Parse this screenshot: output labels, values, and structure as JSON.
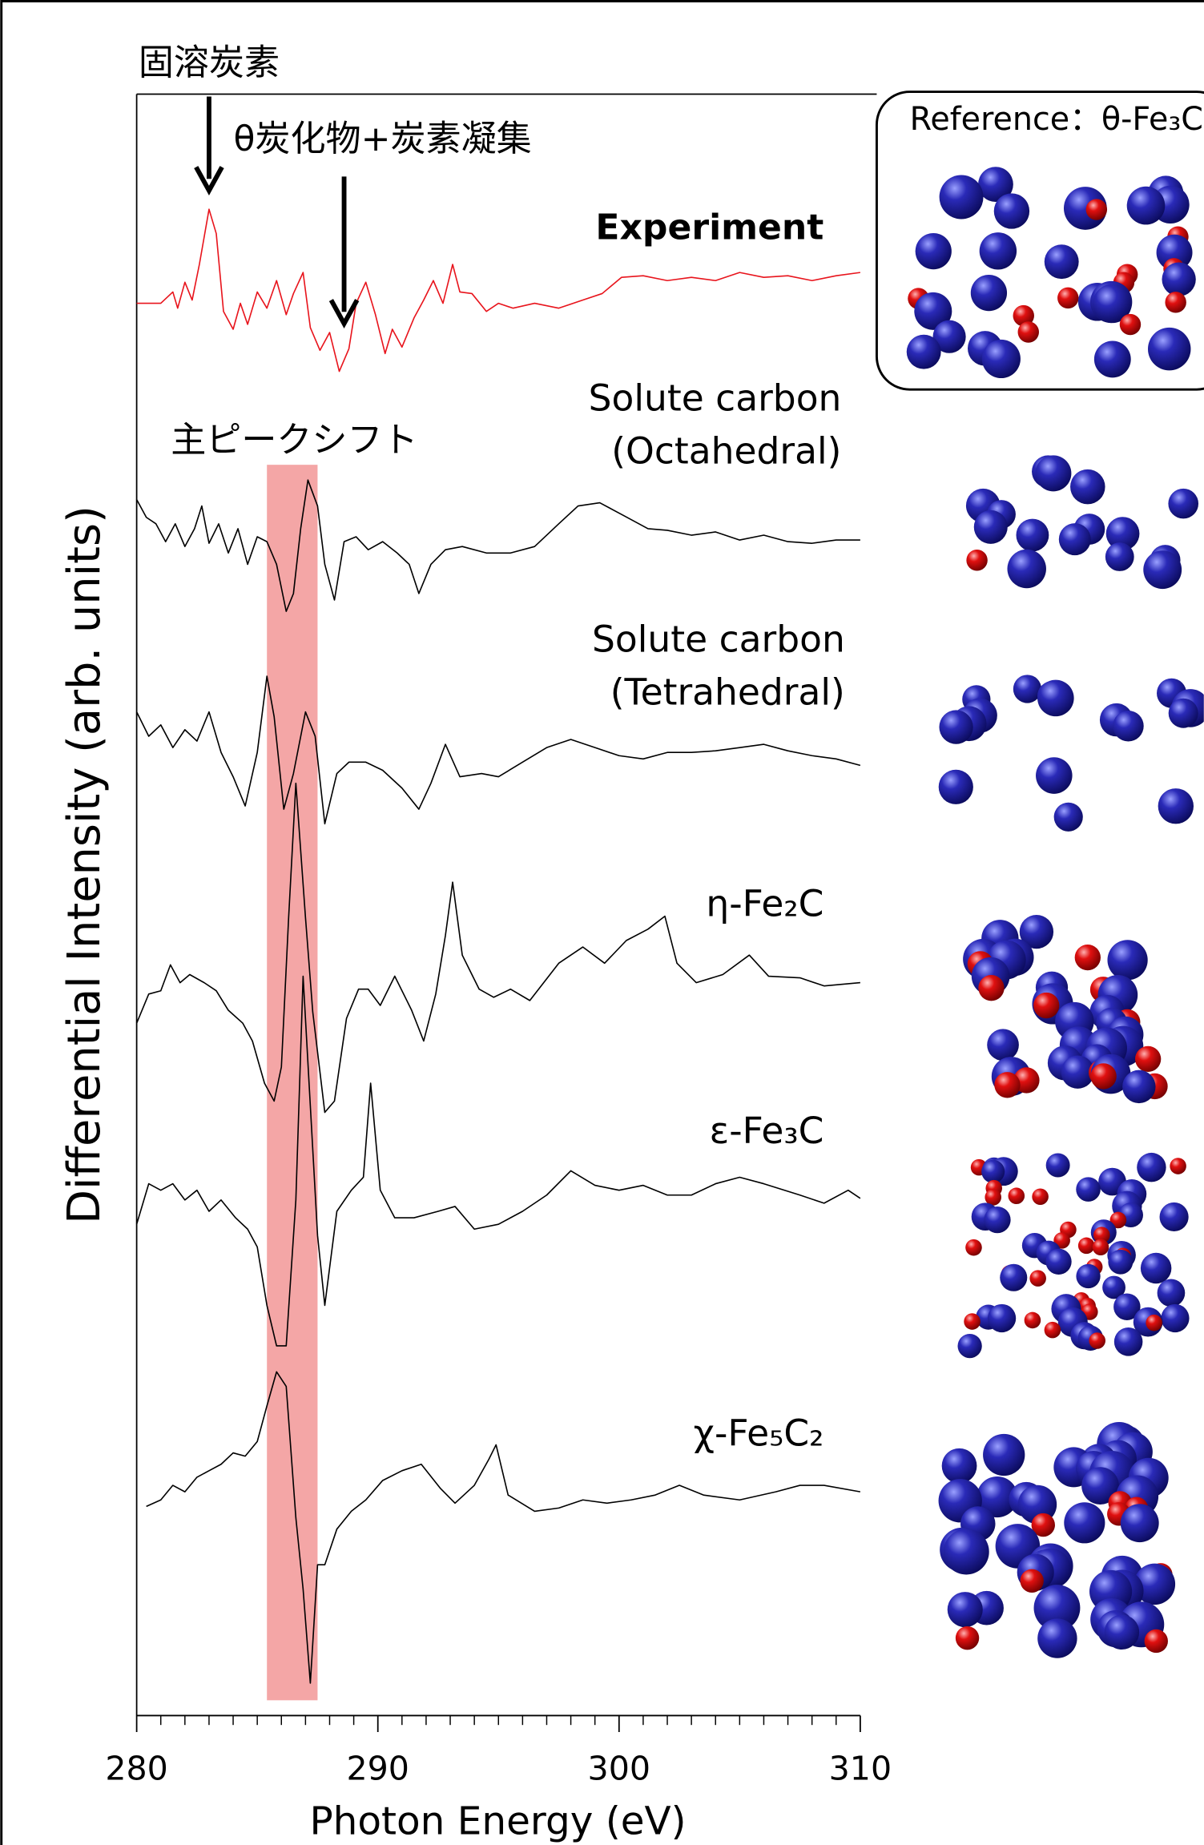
{
  "chart_data": {
    "type": "line",
    "xlabel": "Photon Energy (eV)",
    "ylabel": "Differential Intensity (arb. units)",
    "xlim": [
      280,
      310
    ],
    "ylim": [
      0,
      100
    ],
    "xticks": [
      280,
      290,
      300,
      310
    ],
    "xminorticks": [
      281,
      282,
      283,
      284,
      285,
      286,
      287,
      288,
      289,
      291,
      292,
      293,
      294,
      295,
      296,
      297,
      298,
      299,
      301,
      302,
      303,
      304,
      305,
      306,
      307,
      308,
      309
    ],
    "highlight": {
      "label": "主ピークシフト",
      "x": [
        285.4,
        287.5
      ],
      "color": "#f4a6a6"
    },
    "annotations": [
      {
        "text": "固溶炭素",
        "x": 283.0
      },
      {
        "text": "θ炭化物+炭素凝集",
        "x": 288.6
      }
    ],
    "reference_label": "Reference：θ-Fe₃C",
    "series": [
      {
        "name": "Experiment",
        "color": "#e8141c",
        "x": [
          280,
          281,
          281.5,
          281.7,
          282,
          282.3,
          282.6,
          283,
          283.3,
          283.6,
          284,
          284.3,
          284.6,
          285,
          285.4,
          285.8,
          286.2,
          286.5,
          286.9,
          287.2,
          287.6,
          288,
          288.4,
          288.8,
          289.1,
          289.5,
          289.9,
          290.3,
          290.6,
          291,
          291.5,
          291.9,
          292.3,
          292.7,
          293.1,
          293.4,
          293.9,
          294.5,
          295,
          295.6,
          296.5,
          297.5,
          298.5,
          299.3,
          300.1,
          301,
          302,
          303,
          304,
          305,
          306,
          307,
          308,
          309,
          310
        ],
        "values": [
          87.1,
          87.1,
          87.8,
          86.8,
          88.4,
          87.3,
          89.5,
          92.9,
          91.4,
          86.6,
          85.5,
          87.1,
          85.8,
          87.8,
          86.8,
          88.5,
          86.4,
          87.7,
          89.0,
          85.6,
          84.2,
          85.3,
          82.9,
          84.3,
          87.1,
          88.4,
          86.4,
          84.0,
          85.5,
          84.4,
          86.2,
          87.3,
          88.5,
          87.1,
          89.5,
          87.8,
          87.7,
          86.6,
          87.1,
          86.8,
          87.1,
          86.8,
          87.3,
          87.7,
          88.7,
          88.8,
          88.5,
          88.7,
          88.5,
          89.0,
          88.7,
          88.8,
          88.5,
          88.8,
          89.0
        ]
      },
      {
        "name": "Solute carbon (Octahedral)",
        "color": "#000000",
        "x": [
          280,
          280.4,
          280.8,
          281.2,
          281.6,
          282,
          282.4,
          282.7,
          283,
          283.4,
          283.8,
          284.2,
          284.6,
          285,
          285.4,
          285.8,
          286.2,
          286.5,
          286.8,
          287.1,
          287.5,
          287.8,
          288.2,
          288.6,
          289.1,
          289.6,
          290.2,
          290.8,
          291.3,
          291.7,
          292.2,
          292.8,
          293.5,
          294.5,
          295.5,
          296.5,
          297.5,
          298.3,
          299.2,
          300.2,
          301.2,
          302,
          303,
          304,
          305,
          306,
          307,
          308,
          309,
          310
        ],
        "values": [
          75.0,
          73.9,
          73.5,
          72.4,
          73.5,
          72.1,
          73.2,
          74.6,
          72.3,
          73.5,
          71.7,
          73.2,
          71.0,
          72.7,
          72.4,
          71.0,
          68.1,
          69.2,
          73.2,
          76.2,
          74.6,
          71.0,
          68.8,
          72.4,
          72.7,
          71.9,
          72.4,
          71.7,
          71.0,
          69.2,
          71.0,
          71.9,
          72.1,
          71.7,
          71.7,
          72.1,
          73.5,
          74.6,
          74.8,
          74.0,
          73.2,
          73.1,
          72.8,
          73.0,
          72.5,
          72.8,
          72.4,
          72.3,
          72.5,
          72.5
        ]
      },
      {
        "name": "Solute carbon (Tetrahedral)",
        "color": "#000000",
        "x": [
          280,
          280.5,
          281,
          281.5,
          282,
          282.5,
          283,
          283.5,
          284,
          284.5,
          285,
          285.4,
          285.7,
          286.1,
          286.5,
          287,
          287.4,
          287.8,
          288.3,
          288.8,
          289.5,
          290.2,
          291,
          291.7,
          292.2,
          292.8,
          293.4,
          294.3,
          295,
          296,
          297,
          298,
          299,
          300,
          301,
          302,
          303,
          304,
          305,
          306,
          307,
          308,
          309,
          310
        ],
        "values": [
          61.9,
          60.4,
          61.1,
          59.7,
          60.8,
          60.1,
          61.9,
          59.4,
          57.9,
          56.1,
          59.4,
          64.1,
          61.6,
          55.9,
          58.1,
          61.9,
          60.4,
          55.0,
          58.1,
          58.8,
          58.8,
          58.3,
          57.2,
          55.9,
          57.5,
          59.9,
          57.9,
          58.1,
          57.9,
          58.8,
          59.7,
          60.2,
          59.7,
          59.2,
          59.0,
          59.4,
          59.4,
          59.5,
          59.7,
          59.9,
          59.5,
          59.2,
          59.0,
          58.6
        ]
      },
      {
        "name": "η-Fe₂C",
        "color": "#000000",
        "x": [
          280,
          280.5,
          281,
          281.4,
          281.8,
          282.2,
          282.8,
          283.3,
          283.8,
          284.4,
          284.8,
          285.3,
          285.7,
          286,
          286.3,
          286.6,
          287,
          287.3,
          287.8,
          288.2,
          288.7,
          289.2,
          289.6,
          290.1,
          290.7,
          291.4,
          291.9,
          292.4,
          292.8,
          293.1,
          293.5,
          294.2,
          294.8,
          295.5,
          296.3,
          297.5,
          298.5,
          299.4,
          300.3,
          301.2,
          301.9,
          302.4,
          303.2,
          304.3,
          305.4,
          306.2,
          307.5,
          308.5,
          310
        ],
        "values": [
          42.7,
          44.5,
          44.7,
          46.3,
          45.2,
          45.7,
          45.2,
          44.7,
          43.5,
          42.7,
          41.6,
          39.0,
          37.9,
          40.0,
          49.2,
          57.5,
          49.2,
          43.4,
          37.2,
          37.9,
          43.0,
          44.8,
          44.8,
          43.8,
          45.6,
          43.5,
          41.6,
          44.5,
          48.1,
          51.4,
          46.9,
          44.8,
          44.3,
          44.8,
          44.1,
          46.4,
          47.4,
          46.4,
          47.8,
          48.5,
          49.3,
          46.4,
          45.2,
          45.7,
          46.9,
          45.6,
          45.5,
          45.0,
          45.2
        ]
      },
      {
        "name": "ε-Fe₃C",
        "color": "#000000",
        "x": [
          280,
          280.5,
          281,
          281.5,
          282,
          282.5,
          283,
          283.5,
          284.1,
          284.6,
          285,
          285.4,
          285.8,
          286.2,
          286.6,
          286.9,
          287.2,
          287.5,
          287.8,
          288.3,
          288.9,
          289.4,
          289.7,
          290.1,
          290.7,
          291.5,
          292.5,
          293.2,
          294,
          295,
          296,
          297,
          298,
          299,
          300,
          301,
          302,
          303,
          304,
          305,
          306,
          307.5,
          308.5,
          309.5,
          310
        ],
        "values": [
          30.3,
          32.8,
          32.4,
          32.8,
          31.8,
          32.4,
          31.1,
          31.8,
          30.7,
          30.0,
          28.9,
          25.3,
          22.8,
          22.8,
          31.8,
          45.6,
          37.6,
          29.6,
          25.3,
          31.1,
          32.4,
          33.2,
          39.0,
          32.4,
          30.7,
          30.7,
          31.1,
          31.4,
          30.0,
          30.3,
          31.1,
          32.1,
          33.6,
          32.7,
          32.4,
          32.7,
          32.1,
          32.1,
          32.8,
          33.2,
          32.8,
          32.1,
          31.6,
          32.4,
          31.9
        ]
      },
      {
        "name": "χ-Fe₅C₂",
        "color": "#000000",
        "x": [
          280.4,
          281,
          281.5,
          282,
          282.5,
          283,
          283.5,
          284,
          284.5,
          285,
          285.4,
          285.8,
          286.2,
          286.6,
          286.9,
          287.2,
          287.5,
          287.8,
          288.3,
          288.9,
          289.5,
          290.2,
          291,
          291.8,
          292.6,
          293.2,
          294,
          294.6,
          294.9,
          295.4,
          296.5,
          297.5,
          298.5,
          299.5,
          300.5,
          301.5,
          302.5,
          303.5,
          305,
          306.5,
          307.5,
          308.5,
          310
        ],
        "values": [
          12.9,
          13.3,
          14.2,
          13.8,
          14.7,
          15.1,
          15.5,
          16.2,
          16.0,
          16.9,
          19.1,
          21.2,
          20.3,
          12.2,
          7.8,
          2.0,
          9.3,
          9.3,
          11.5,
          12.6,
          13.3,
          14.5,
          15.1,
          15.5,
          14.0,
          13.1,
          14.2,
          15.8,
          16.7,
          13.6,
          12.6,
          12.8,
          13.3,
          13.1,
          13.3,
          13.6,
          14.2,
          13.6,
          13.3,
          13.8,
          14.2,
          14.2,
          13.8
        ]
      }
    ]
  }
}
